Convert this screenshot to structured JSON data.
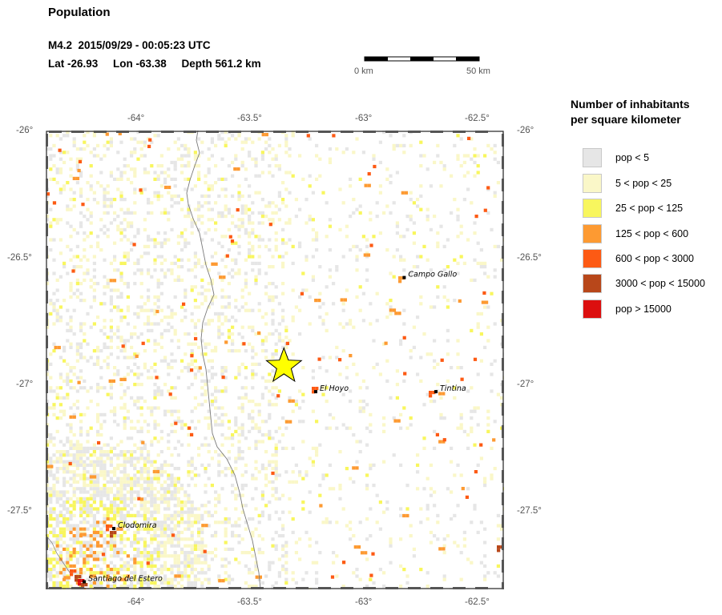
{
  "header": {
    "title": "Population",
    "line1": "M4.2  2015/09/29 - 00:05:23 UTC",
    "line2": "Lat -26.93     Lon -63.38     Depth 561.2 km"
  },
  "scale_bar": {
    "start_label": "0 km",
    "end_label": "50 km"
  },
  "map": {
    "lon_ticks": [
      "-64°",
      "-63.5°",
      "-63°",
      "-62.5°"
    ],
    "lat_ticks": [
      "-26°",
      "-26.5°",
      "-27°",
      "-27.5°"
    ],
    "epicenter": {
      "lat": -26.93,
      "lon": -63.38,
      "color": "#ffff00"
    },
    "cities": [
      {
        "name": "Campo Gallo",
        "lat": -26.58,
        "lon": -62.85
      },
      {
        "name": "El Hoyo",
        "lat": -27.03,
        "lon": -63.24
      },
      {
        "name": "Tintina",
        "lat": -27.03,
        "lon": -62.71
      },
      {
        "name": "Clodomira",
        "lat": -27.57,
        "lon": -64.13
      },
      {
        "name": "Santiago del Estero",
        "lat": -27.78,
        "lon": -64.26
      }
    ]
  },
  "legend": {
    "title_line1": "Number of inhabitants",
    "title_line2": "per square kilometer",
    "items": [
      {
        "label": "pop < 5",
        "color": "#e6e6e6"
      },
      {
        "label": "5 < pop < 25",
        "color": "#faf7c8"
      },
      {
        "label": "25 < pop < 125",
        "color": "#f8f65e"
      },
      {
        "label": "125 < pop < 600",
        "color": "#fd9a32"
      },
      {
        "label": "600 < pop < 3000",
        "color": "#fd5a14"
      },
      {
        "label": "3000 < pop < 15000",
        "color": "#b8471a"
      },
      {
        "label": "pop > 15000",
        "color": "#dc0f0f"
      }
    ]
  }
}
